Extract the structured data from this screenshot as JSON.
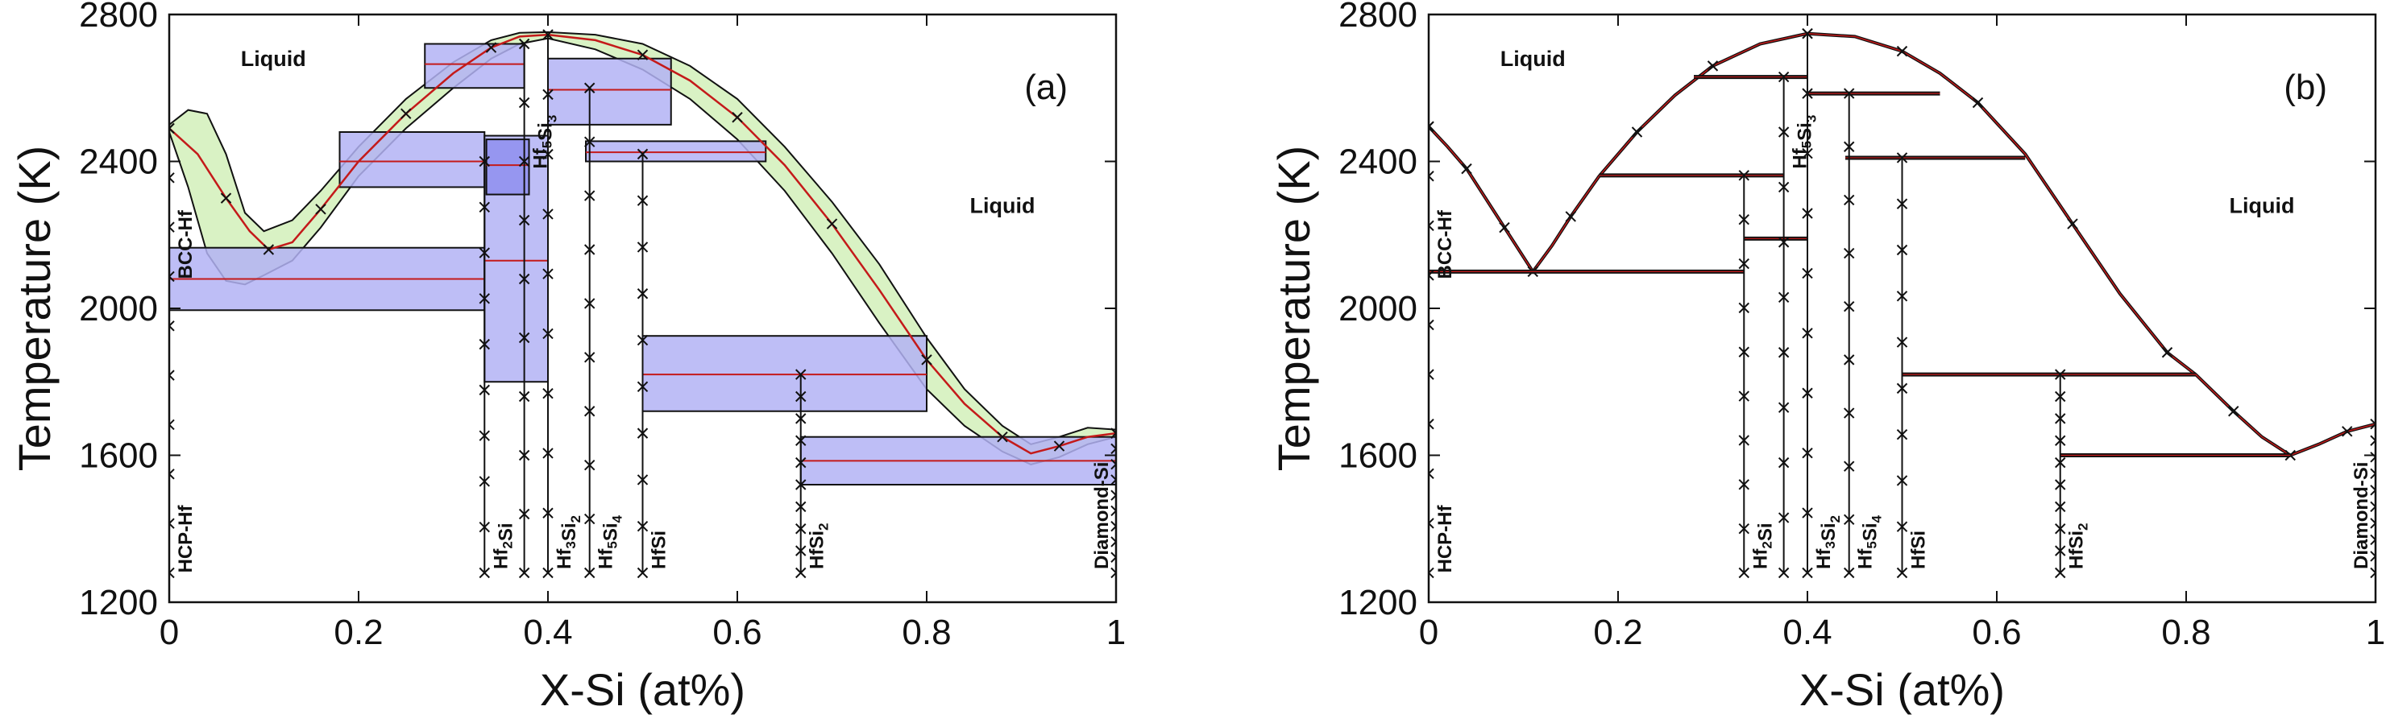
{
  "chart_data": [
    {
      "type": "line",
      "panel_label": "(a)",
      "xlabel": "X-Si (at%)",
      "ylabel": "Temperature (K)",
      "xlim": [
        0,
        1
      ],
      "ylim": [
        1200,
        2800
      ],
      "xticks": [
        0,
        0.2,
        0.4,
        0.6,
        0.8,
        1
      ],
      "xtick_labels": [
        "0",
        "0.2",
        "0.4",
        "0.6",
        "0.8",
        "1"
      ],
      "yticks": [
        1200,
        1600,
        2000,
        2400,
        2800
      ],
      "ytick_labels": [
        "1200",
        "1600",
        "2000",
        "2400",
        "2800"
      ],
      "region_labels": [
        {
          "text": "Liquid",
          "x": 0.11,
          "y": 2660
        },
        {
          "text": "Liquid",
          "x": 0.88,
          "y": 2260
        }
      ],
      "liquidus": [
        [
          0,
          2490
        ],
        [
          0.03,
          2420
        ],
        [
          0.06,
          2300
        ],
        [
          0.085,
          2210
        ],
        [
          0.105,
          2160
        ],
        [
          0.13,
          2180
        ],
        [
          0.16,
          2270
        ],
        [
          0.2,
          2400
        ],
        [
          0.25,
          2530
        ],
        [
          0.3,
          2640
        ],
        [
          0.34,
          2710
        ],
        [
          0.37,
          2740
        ],
        [
          0.4,
          2745
        ],
        [
          0.45,
          2730
        ],
        [
          0.5,
          2690
        ],
        [
          0.55,
          2620
        ],
        [
          0.6,
          2520
        ],
        [
          0.65,
          2390
        ],
        [
          0.7,
          2230
        ],
        [
          0.75,
          2050
        ],
        [
          0.8,
          1860
        ],
        [
          0.84,
          1740
        ],
        [
          0.88,
          1650
        ],
        [
          0.91,
          1605
        ],
        [
          0.94,
          1625
        ],
        [
          0.97,
          1650
        ],
        [
          1,
          1660
        ]
      ],
      "uncertainty_band_upper": [
        [
          0,
          2500
        ],
        [
          0.02,
          2540
        ],
        [
          0.04,
          2530
        ],
        [
          0.06,
          2420
        ],
        [
          0.08,
          2260
        ],
        [
          0.1,
          2210
        ],
        [
          0.13,
          2240
        ],
        [
          0.16,
          2320
        ],
        [
          0.2,
          2440
        ],
        [
          0.25,
          2570
        ],
        [
          0.3,
          2670
        ],
        [
          0.34,
          2730
        ],
        [
          0.37,
          2750
        ],
        [
          0.4,
          2752
        ],
        [
          0.45,
          2745
        ],
        [
          0.5,
          2720
        ],
        [
          0.55,
          2660
        ],
        [
          0.6,
          2570
        ],
        [
          0.65,
          2440
        ],
        [
          0.7,
          2290
        ],
        [
          0.75,
          2120
        ],
        [
          0.8,
          1920
        ],
        [
          0.84,
          1780
        ],
        [
          0.88,
          1680
        ],
        [
          0.91,
          1630
        ],
        [
          0.94,
          1650
        ],
        [
          0.97,
          1675
        ],
        [
          1,
          1670
        ]
      ],
      "uncertainty_band_lower": [
        [
          0,
          2480
        ],
        [
          0.02,
          2330
        ],
        [
          0.04,
          2150
        ],
        [
          0.06,
          2075
        ],
        [
          0.08,
          2065
        ],
        [
          0.1,
          2090
        ],
        [
          0.13,
          2130
        ],
        [
          0.16,
          2220
        ],
        [
          0.2,
          2360
        ],
        [
          0.25,
          2490
        ],
        [
          0.3,
          2600
        ],
        [
          0.34,
          2680
        ],
        [
          0.37,
          2720
        ],
        [
          0.4,
          2735
        ],
        [
          0.45,
          2705
        ],
        [
          0.5,
          2650
        ],
        [
          0.55,
          2570
        ],
        [
          0.6,
          2460
        ],
        [
          0.65,
          2320
        ],
        [
          0.7,
          2150
        ],
        [
          0.75,
          1960
        ],
        [
          0.8,
          1780
        ],
        [
          0.84,
          1680
        ],
        [
          0.88,
          1610
        ],
        [
          0.91,
          1575
        ],
        [
          0.94,
          1595
        ],
        [
          0.97,
          1630
        ],
        [
          1,
          1650
        ]
      ],
      "invariant_bands": [
        {
          "x1": 0.0,
          "x2": 0.333,
          "t_lo": 1995,
          "t_hi": 2165,
          "t_mean": 2080
        },
        {
          "x1": 0.18,
          "x2": 0.333,
          "t_lo": 2330,
          "t_hi": 2480,
          "t_mean": 2400
        },
        {
          "x1": 0.27,
          "x2": 0.375,
          "t_lo": 2600,
          "t_hi": 2720,
          "t_mean": 2665
        },
        {
          "x1": 0.333,
          "x2": 0.4,
          "t_lo": 1800,
          "t_hi": 2470,
          "t_mean": 2130
        },
        {
          "x1": 0.335,
          "x2": 0.38,
          "t_lo": 2310,
          "t_hi": 2460,
          "t_mean": 2390
        },
        {
          "x1": 0.4,
          "x2": 0.53,
          "t_lo": 2500,
          "t_hi": 2680,
          "t_mean": 2595
        },
        {
          "x1": 0.44,
          "x2": 0.63,
          "t_lo": 2400,
          "t_hi": 2455,
          "t_mean": 2425
        },
        {
          "x1": 0.5,
          "x2": 0.8,
          "t_lo": 1720,
          "t_hi": 1925,
          "t_mean": 1820
        },
        {
          "x1": 0.667,
          "x2": 1.0,
          "t_lo": 1520,
          "t_hi": 1650,
          "t_mean": 1585
        }
      ],
      "compound_lines": [
        {
          "x": 0.0,
          "t_top": 2490,
          "label": "HCP-Hf",
          "sub": ""
        },
        {
          "x": 0.333,
          "t_top": 2400,
          "label": "Hf2Si",
          "sub": "2"
        },
        {
          "x": 0.375,
          "t_top": 2720,
          "label": "Hf5Si3",
          "sub": "5,3"
        },
        {
          "x": 0.4,
          "t_top": 2745,
          "label": "Hf3Si2",
          "sub": "3,2"
        },
        {
          "x": 0.444,
          "t_top": 2600,
          "label": "Hf5Si4",
          "sub": "5,4"
        },
        {
          "x": 0.5,
          "t_top": 2420,
          "label": "HfSi",
          "sub": ""
        },
        {
          "x": 0.667,
          "t_top": 1820,
          "label": "HfSi2",
          "sub": "2"
        },
        {
          "x": 1.0,
          "t_top": 1660,
          "label": "Diamond-Si",
          "sub": ""
        }
      ],
      "phase_labels": [
        {
          "text": "HCP-Hf",
          "x": 0.0,
          "y_base": 1280
        },
        {
          "text": "BCC-Hf",
          "x": 0.0,
          "y_base": 2080
        },
        {
          "text": "Hf2Si",
          "x": 0.333,
          "y_base": 1290
        },
        {
          "text": "Hf3Si2",
          "x": 0.4,
          "y_base": 1290
        },
        {
          "text": "Hf5Si4",
          "x": 0.444,
          "y_base": 1290
        },
        {
          "text": "HfSi",
          "x": 0.5,
          "y_base": 1290
        },
        {
          "text": "HfSi2",
          "x": 0.667,
          "y_base": 1290
        },
        {
          "text": "Diamond-Si",
          "x": 1.0,
          "y_base": 1290
        },
        {
          "text": "Hf5Si3",
          "x": 0.375,
          "y_base": 2380
        }
      ]
    },
    {
      "type": "line",
      "panel_label": "(b)",
      "xlabel": "X-Si (at%)",
      "ylabel": "Temperature (K)",
      "xlim": [
        0,
        1
      ],
      "ylim": [
        1200,
        2800
      ],
      "xticks": [
        0,
        0.2,
        0.4,
        0.6,
        0.8,
        1
      ],
      "xtick_labels": [
        "0",
        "0.2",
        "0.4",
        "0.6",
        "0.8",
        "1"
      ],
      "yticks": [
        1200,
        1600,
        2000,
        2400,
        2800
      ],
      "ytick_labels": [
        "1200",
        "1600",
        "2000",
        "2400",
        "2800"
      ],
      "region_labels": [
        {
          "text": "Liquid",
          "x": 0.11,
          "y": 2660
        },
        {
          "text": "Liquid",
          "x": 0.88,
          "y": 2260
        }
      ],
      "liquidus": [
        [
          0,
          2495
        ],
        [
          0.02,
          2440
        ],
        [
          0.04,
          2380
        ],
        [
          0.06,
          2300
        ],
        [
          0.08,
          2220
        ],
        [
          0.1,
          2140
        ],
        [
          0.11,
          2100
        ],
        [
          0.13,
          2170
        ],
        [
          0.15,
          2250
        ],
        [
          0.18,
          2360
        ],
        [
          0.22,
          2480
        ],
        [
          0.26,
          2580
        ],
        [
          0.3,
          2660
        ],
        [
          0.35,
          2720
        ],
        [
          0.4,
          2748
        ],
        [
          0.45,
          2740
        ],
        [
          0.5,
          2700
        ],
        [
          0.54,
          2640
        ],
        [
          0.58,
          2560
        ],
        [
          0.63,
          2420
        ],
        [
          0.68,
          2230
        ],
        [
          0.73,
          2040
        ],
        [
          0.78,
          1880
        ],
        [
          0.81,
          1820
        ],
        [
          0.85,
          1720
        ],
        [
          0.88,
          1650
        ],
        [
          0.91,
          1600
        ],
        [
          0.94,
          1630
        ],
        [
          0.97,
          1665
        ],
        [
          1,
          1685
        ]
      ],
      "invariant_lines": [
        {
          "x1": 0.0,
          "x2": 0.333,
          "t": 2100
        },
        {
          "x1": 0.18,
          "x2": 0.375,
          "t": 2362
        },
        {
          "x1": 0.28,
          "x2": 0.4,
          "t": 2630
        },
        {
          "x1": 0.333,
          "x2": 0.4,
          "t": 2190
        },
        {
          "x1": 0.4,
          "x2": 0.54,
          "t": 2585
        },
        {
          "x1": 0.44,
          "x2": 0.63,
          "t": 2410
        },
        {
          "x1": 0.5,
          "x2": 0.81,
          "t": 1820
        },
        {
          "x1": 0.667,
          "x2": 0.91,
          "t": 1600
        }
      ],
      "compound_lines": [
        {
          "x": 0.0,
          "t_top": 2495
        },
        {
          "x": 0.333,
          "t_top": 2362
        },
        {
          "x": 0.375,
          "t_top": 2630
        },
        {
          "x": 0.4,
          "t_top": 2748
        },
        {
          "x": 0.444,
          "t_top": 2585
        },
        {
          "x": 0.5,
          "t_top": 2410
        },
        {
          "x": 0.667,
          "t_top": 1820
        },
        {
          "x": 1.0,
          "t_top": 1685
        }
      ],
      "phase_labels": [
        {
          "text": "HCP-Hf",
          "x": 0.0,
          "y_base": 1280
        },
        {
          "text": "BCC-Hf",
          "x": 0.0,
          "y_base": 2080
        },
        {
          "text": "Hf2Si",
          "x": 0.333,
          "y_base": 1290
        },
        {
          "text": "Hf3Si2",
          "x": 0.4,
          "y_base": 1290
        },
        {
          "text": "Hf5Si4",
          "x": 0.444,
          "y_base": 1290
        },
        {
          "text": "HfSi",
          "x": 0.5,
          "y_base": 1290
        },
        {
          "text": "HfSi2",
          "x": 0.667,
          "y_base": 1290
        },
        {
          "text": "Diamond-Si",
          "x": 1.0,
          "y_base": 1290
        },
        {
          "text": "Hf5Si3",
          "x": 0.375,
          "y_base": 2380
        }
      ]
    }
  ],
  "colors": {
    "band_fill": "#b3b3f5",
    "band_dark_fill": "#8f8fee",
    "uncertainty_fill": "#d9f2c4",
    "liquidus_red": "#c41a1a",
    "axis": "#111111"
  }
}
